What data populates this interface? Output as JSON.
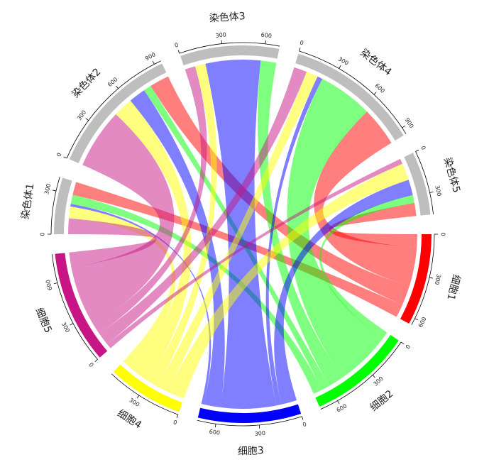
{
  "chart_data": {
    "type": "chord",
    "rows": [
      "染色体1",
      "染色体2",
      "染色体3",
      "染色体4",
      "染色体5"
    ],
    "columns": [
      "细胞1",
      "细胞2",
      "细胞3",
      "细胞4",
      "细胞5"
    ],
    "row_color": "#bebebe",
    "column_colors": [
      "#ff0000",
      "#00ff00",
      "#0000ff",
      "#ffff00",
      "#c71585"
    ],
    "matrix": [
      [
        100,
        70,
        20,
        90,
        120
      ],
      [
        150,
        60,
        130,
        150,
        460
      ],
      [
        0,
        120,
        420,
        80,
        80
      ],
      [
        300,
        420,
        40,
        90,
        100
      ],
      [
        100,
        60,
        120,
        130,
        40
      ]
    ],
    "ticks": [
      0,
      300,
      600,
      900
    ]
  }
}
